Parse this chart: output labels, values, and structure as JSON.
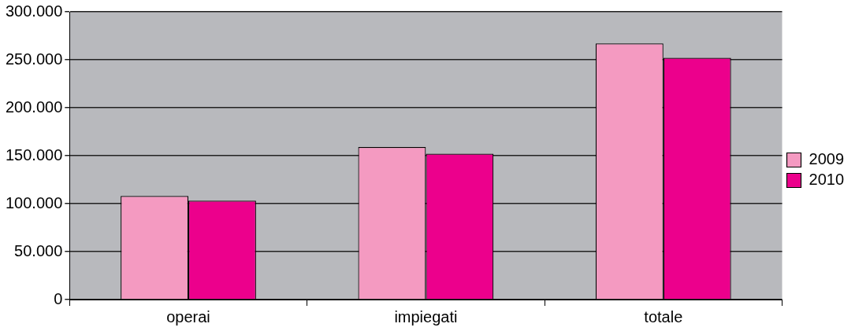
{
  "chart_data": {
    "type": "bar",
    "categories": [
      "operai",
      "impiegati",
      "totale"
    ],
    "series": [
      {
        "name": "2009",
        "color": "#f49ac1",
        "values": [
          108000,
          159000,
          267000
        ]
      },
      {
        "name": "2010",
        "color": "#ec008c",
        "values": [
          103000,
          152000,
          252000
        ]
      }
    ],
    "ylim": [
      0,
      300000
    ],
    "yticks": [
      0,
      {
        "value": 50000,
        "label": "50.000"
      },
      {
        "value": 100000,
        "label": "100.000"
      },
      {
        "value": 150000,
        "label": "150.000"
      },
      {
        "value": 200000,
        "label": "200.000"
      },
      {
        "value": 250000,
        "label": "250.000"
      },
      {
        "value": 300000,
        "label": "300.000"
      }
    ],
    "grid": "y",
    "legend": "right"
  }
}
